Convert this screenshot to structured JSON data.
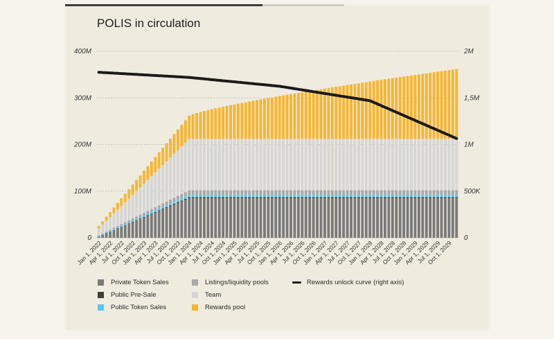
{
  "chart_data": {
    "type": "bar",
    "stacked": true,
    "title": "POLIS in circulation",
    "x_tick_labels": [
      "Jan 1, 2022",
      "Apr 1, 2022",
      "Jul 1, 2022",
      "Oct 1, 2022",
      "Jan 1, 2023",
      "Apr 1, 2023",
      "Jul 1, 2023",
      "Oct 1, 2023",
      "Jan 1, 2024",
      "Apr 1, 2024",
      "Jul 1, 2024",
      "Oct 1, 2024",
      "Jan 1, 2025",
      "Apr 1, 2025",
      "Jul 1, 2025",
      "Oct 1, 2025",
      "Jan 1, 2026",
      "Apr 1, 2026",
      "Jul 1, 2026",
      "Oct 1, 2026",
      "Jan 1, 2027",
      "Apr 1, 2027",
      "Jul 1, 2027",
      "Oct 1, 2027",
      "Jan 1, 2028",
      "Apr 1, 2028",
      "Jul 1, 2028",
      "Oct 1, 2028",
      "Jan 1, 2029",
      "Apr 1, 2029",
      "Jul 1, 2029",
      "Oct 1, 2029"
    ],
    "bars_per_tick": 3,
    "y_left": {
      "ticks": [
        0,
        100,
        200,
        300,
        400
      ],
      "tick_labels": [
        "0",
        "100M",
        "200M",
        "300M",
        "400M"
      ],
      "range": [
        0,
        400
      ]
    },
    "y_right": {
      "ticks": [
        0,
        500,
        1000,
        1500,
        2000
      ],
      "tick_labels": [
        "0",
        "500K",
        "1M",
        "1,5M",
        "2M"
      ],
      "range": [
        0,
        2000
      ]
    },
    "grid": "horizontal, dashed",
    "series_shape": {
      "Private Token Sales": {
        "start": 2,
        "end": 85,
        "ramp_months": 24
      },
      "Public Pre-Sale": {
        "start": 0.5,
        "end": 2,
        "ramp_months": 24
      },
      "Public Token Sales": {
        "start": 2,
        "end": 5,
        "ramp_months": 24
      },
      "Listings/liquidity pools": {
        "start": 1,
        "end": 10,
        "ramp_months": 24
      },
      "Team": {
        "start": 15,
        "end": 110,
        "ramp_months": 24
      },
      "Rewards pool": {
        "start": 5,
        "end_at_ramp": 50,
        "end": 150
      }
    },
    "series": [
      {
        "name": "Private Token Sales",
        "color": "#7a7a7a",
        "axis": "left"
      },
      {
        "name": "Public Pre-Sale",
        "color": "#3d3d3d",
        "axis": "left"
      },
      {
        "name": "Public Token Sales",
        "color": "#56c8f2",
        "axis": "left"
      },
      {
        "name": "Listings/liquidity pools",
        "color": "#a9a9a9",
        "axis": "left"
      },
      {
        "name": "Team",
        "color": "#d6d6d6",
        "axis": "left"
      },
      {
        "name": "Rewards pool",
        "color": "#f6b634",
        "axis": "left"
      },
      {
        "name": "Rewards unlock curve (right axis)",
        "type": "line",
        "color": "#1b1b1b",
        "axis": "right",
        "points": [
          [
            0,
            1775
          ],
          [
            24,
            1720
          ],
          [
            48,
            1625
          ],
          [
            72,
            1470
          ],
          [
            95,
            1065
          ]
        ]
      }
    ]
  }
}
